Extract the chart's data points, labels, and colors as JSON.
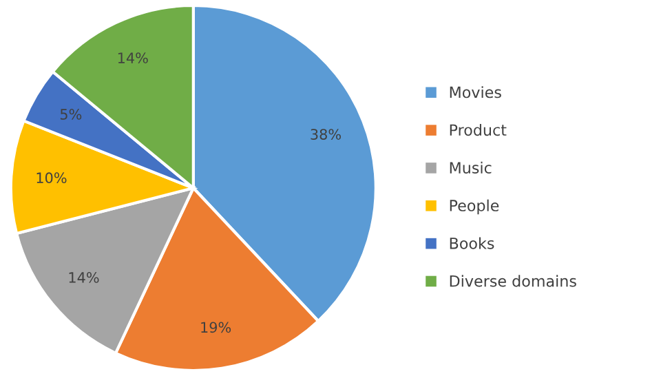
{
  "chart_data": {
    "type": "pie",
    "categories": [
      "Movies",
      "Product",
      "Music",
      "People",
      "Books",
      "Diverse domains"
    ],
    "values": [
      38,
      19,
      14,
      10,
      5,
      14
    ],
    "colors": [
      "#5b9bd5",
      "#ed7d31",
      "#a5a5a5",
      "#ffc000",
      "#4472c4",
      "#70ad47"
    ],
    "value_labels": [
      "38%",
      "19%",
      "14%",
      "10%",
      "5%",
      "14%"
    ],
    "legend": "right"
  }
}
